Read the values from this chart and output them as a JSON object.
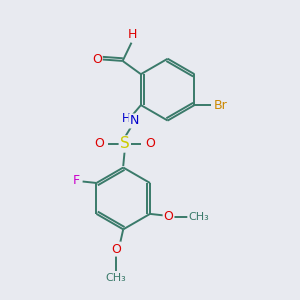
{
  "background_color": "#e8eaf0",
  "bond_color": "#3a7a6a",
  "atom_colors": {
    "O": "#dd0000",
    "N": "#0000cc",
    "S": "#cccc00",
    "Br": "#cc8800",
    "F": "#cc00cc",
    "C": "#3a7a6a",
    "H": "#3a7a6a"
  },
  "figsize": [
    3.0,
    3.0
  ],
  "dpi": 100
}
